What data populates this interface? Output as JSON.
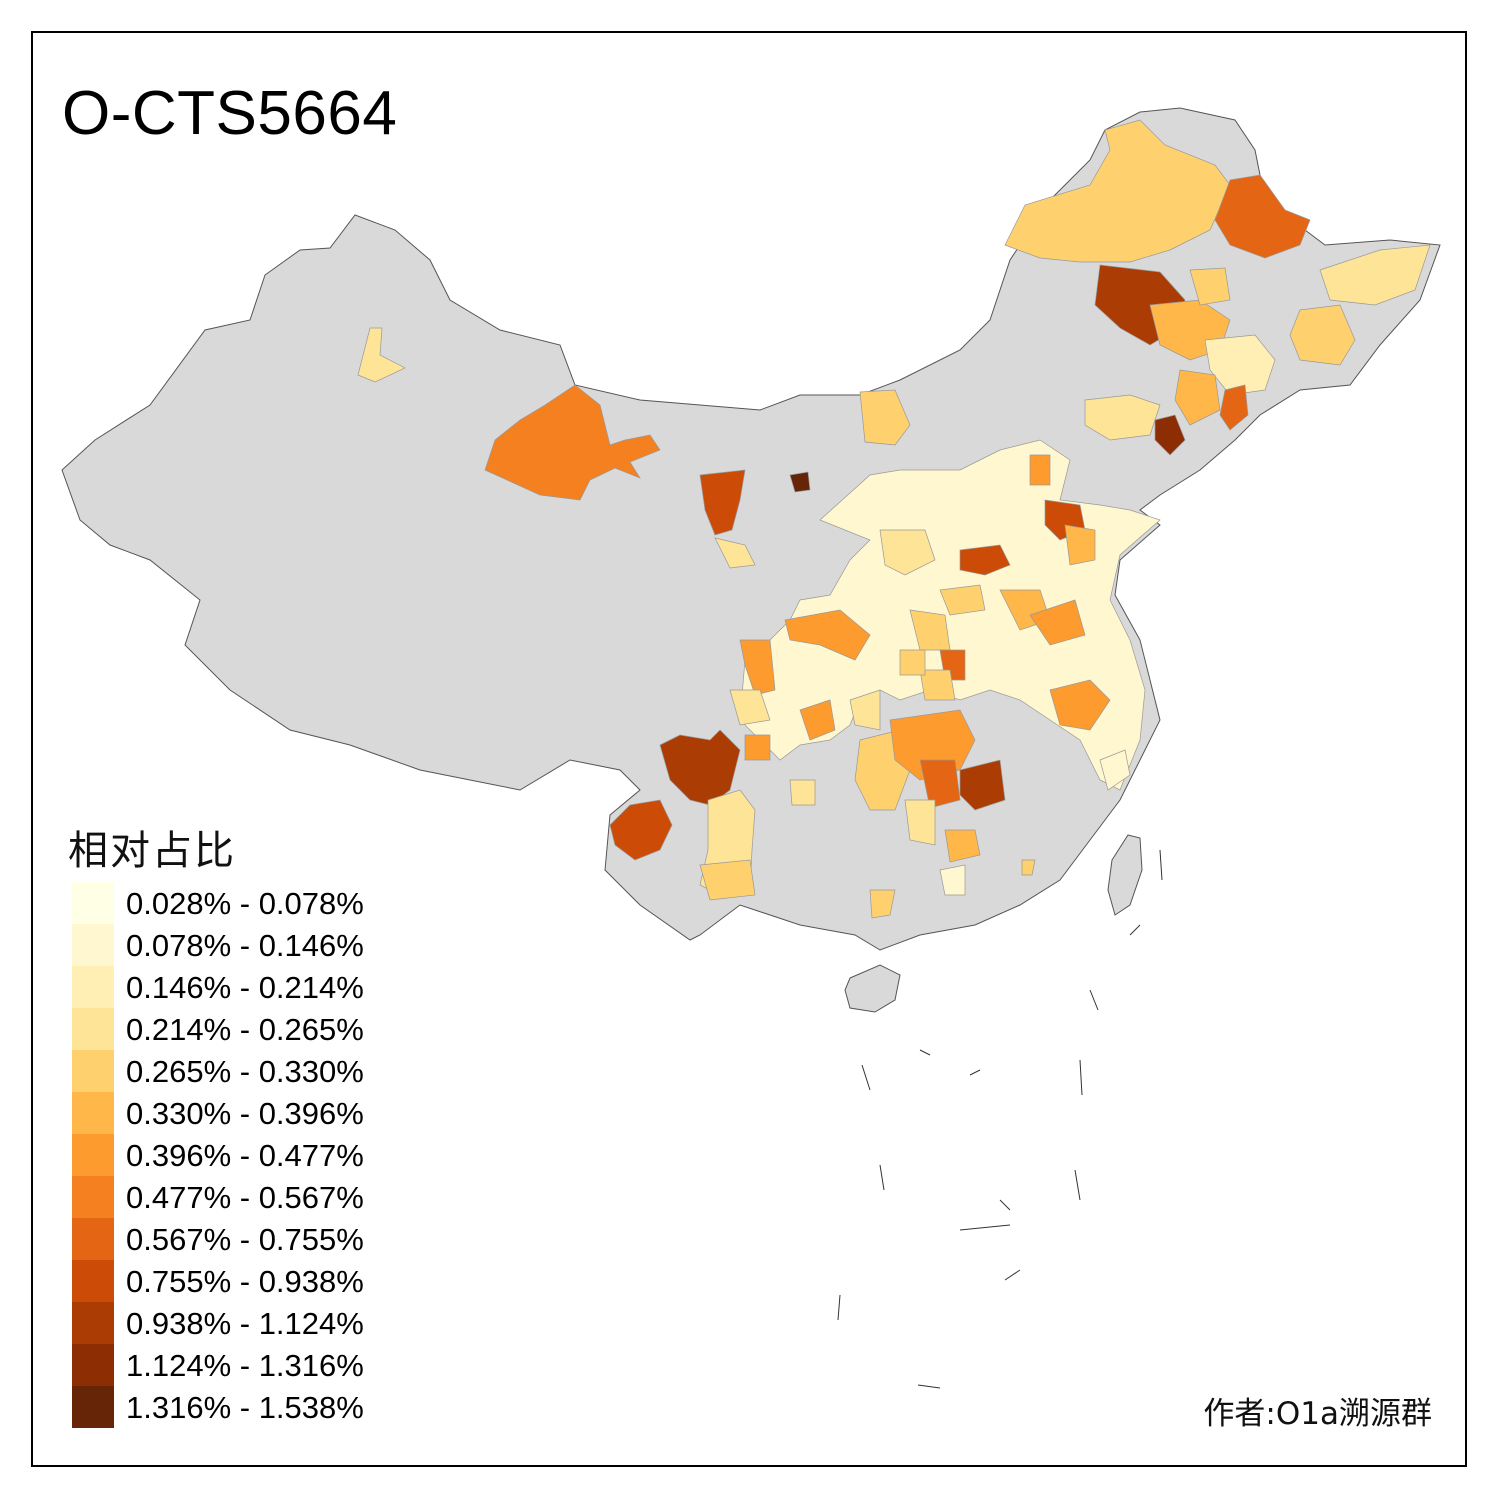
{
  "title": "O-CTS5664",
  "legend": {
    "title": "相对占比",
    "items": [
      {
        "label": "0.028% - 0.078%",
        "color": "#ffffe5"
      },
      {
        "label": "0.078% - 0.146%",
        "color": "#fff7cf"
      },
      {
        "label": "0.146% - 0.214%",
        "color": "#ffefb5"
      },
      {
        "label": "0.214% - 0.265%",
        "color": "#fee496"
      },
      {
        "label": "0.265% - 0.330%",
        "color": "#fed16e"
      },
      {
        "label": "0.330% - 0.396%",
        "color": "#feb748"
      },
      {
        "label": "0.396% - 0.477%",
        "color": "#fe9b2f"
      },
      {
        "label": "0.477% - 0.567%",
        "color": "#f48020"
      },
      {
        "label": "0.567% - 0.755%",
        "color": "#e46513"
      },
      {
        "label": "0.755% - 0.938%",
        "color": "#cc4c07"
      },
      {
        "label": "0.938% - 1.124%",
        "color": "#ab3c03"
      },
      {
        "label": "1.124% - 1.316%",
        "color": "#8c2d04"
      },
      {
        "label": "1.316% - 1.538%",
        "color": "#662506"
      }
    ]
  },
  "credit": "作者:O1a溯源群",
  "colors": {
    "no_data": "#d9d9d9",
    "border": "#555555"
  }
}
